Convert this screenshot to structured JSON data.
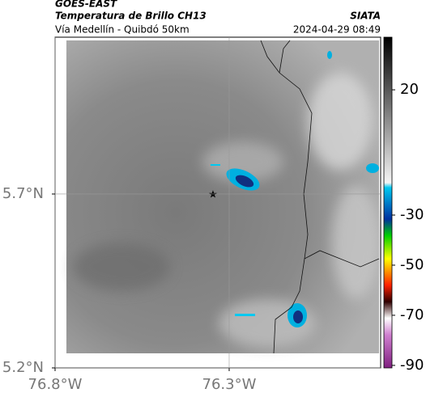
{
  "header": {
    "source": "GOES-EAST",
    "title": "Temperatura de Brillo CH13",
    "agency": "SIATA",
    "subtitle": "Vía Medellín - Quibdó 50km",
    "timestamp": "2024-04-29 08:49"
  },
  "map": {
    "xlim": [
      -76.8,
      -75.865
    ],
    "ylim": [
      5.2,
      6.151
    ],
    "xticks": [
      {
        "value": -76.8,
        "label": "76.8°W"
      },
      {
        "value": -76.3,
        "label": "76.3°W"
      }
    ],
    "yticks": [
      {
        "value": 5.7,
        "label": "5.7°N"
      },
      {
        "value": 5.2,
        "label": "5.2°N"
      }
    ],
    "grid": true
  },
  "colorbar": {
    "clim": [
      -91,
      41
    ],
    "ticks": [
      20,
      -30,
      -50,
      -70,
      -90
    ]
  }
}
